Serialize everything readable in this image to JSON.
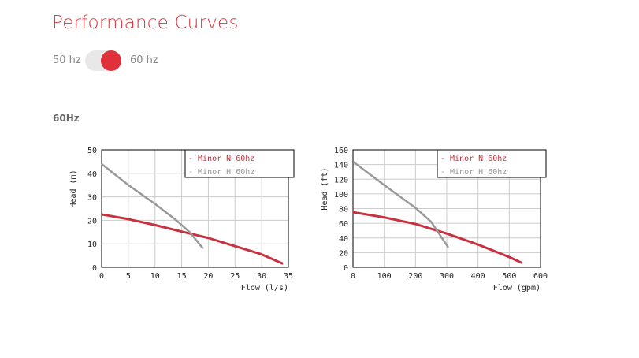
{
  "title": "Performance Curves",
  "toggle": {
    "left_label": "50 hz",
    "right_label": "60 hz",
    "selected": "60 hz"
  },
  "section_title": "60Hz",
  "colors": {
    "accent": "#d9323a",
    "series_n": "#c8323f",
    "series_h": "#999999"
  },
  "chart_data": [
    {
      "type": "line",
      "xlabel": "Flow (l/s)",
      "ylabel": "Head (m)",
      "xlim": [
        0,
        35
      ],
      "ylim": [
        0,
        50
      ],
      "xticks": [
        0,
        5,
        10,
        15,
        20,
        25,
        30,
        35
      ],
      "yticks": [
        0,
        10,
        20,
        30,
        40,
        50
      ],
      "grid": true,
      "legend": "top-right",
      "series": [
        {
          "name": "Minor N 60hz",
          "color": "#c8323f",
          "points": [
            [
              0,
              22.5
            ],
            [
              5,
              20.5
            ],
            [
              10,
              18
            ],
            [
              15,
              15.2
            ],
            [
              20,
              12.5
            ],
            [
              25,
              9
            ],
            [
              30,
              5.5
            ],
            [
              34,
              1.5
            ]
          ]
        },
        {
          "name": "Minor H 60hz",
          "color": "#999999",
          "points": [
            [
              0,
              44
            ],
            [
              5,
              35
            ],
            [
              10,
              27
            ],
            [
              14,
              20
            ],
            [
              16.5,
              15
            ],
            [
              19,
              8
            ]
          ]
        }
      ]
    },
    {
      "type": "line",
      "xlabel": "Flow (gpm)",
      "ylabel": "Head (ft)",
      "xlim": [
        0,
        600
      ],
      "ylim": [
        0,
        160
      ],
      "xticks": [
        0,
        100,
        200,
        300,
        400,
        500,
        600
      ],
      "yticks": [
        0,
        20,
        40,
        60,
        80,
        100,
        120,
        140,
        160
      ],
      "grid": true,
      "legend": "top-right",
      "series": [
        {
          "name": "Minor N 60hz",
          "color": "#c8323f",
          "points": [
            [
              0,
              75
            ],
            [
              100,
              68
            ],
            [
              200,
              59
            ],
            [
              300,
              46
            ],
            [
              400,
              31
            ],
            [
              500,
              14
            ],
            [
              540,
              6
            ]
          ]
        },
        {
          "name": "Minor H 60hz",
          "color": "#999999",
          "points": [
            [
              0,
              144
            ],
            [
              100,
              112
            ],
            [
              200,
              81
            ],
            [
              250,
              62
            ],
            [
              305,
              27
            ]
          ]
        }
      ]
    }
  ]
}
